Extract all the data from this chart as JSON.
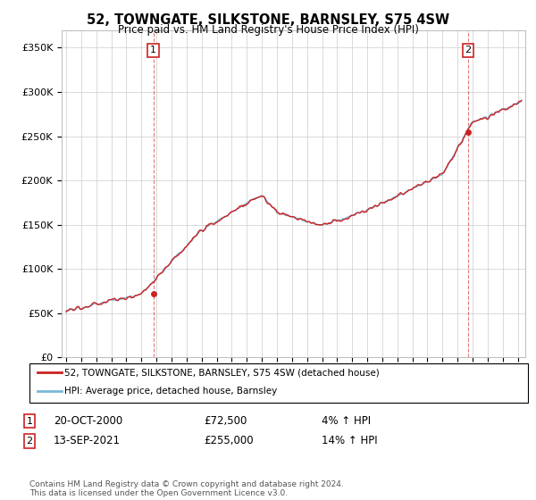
{
  "title": "52, TOWNGATE, SILKSTONE, BARNSLEY, S75 4SW",
  "subtitle": "Price paid vs. HM Land Registry's House Price Index (HPI)",
  "ylabel_ticks": [
    "£0",
    "£50K",
    "£100K",
    "£150K",
    "£200K",
    "£250K",
    "£300K",
    "£350K"
  ],
  "ytick_values": [
    0,
    50000,
    100000,
    150000,
    200000,
    250000,
    300000,
    350000
  ],
  "ylim": [
    0,
    370000
  ],
  "hpi_color": "#7ab8d9",
  "price_color": "#cc2222",
  "background_color": "#ffffff",
  "grid_color": "#cccccc",
  "legend_entries": [
    "52, TOWNGATE, SILKSTONE, BARNSLEY, S75 4SW (detached house)",
    "HPI: Average price, detached house, Barnsley"
  ],
  "point1_date": "20-OCT-2000",
  "point1_price": "£72,500",
  "point1_hpi": "4% ↑ HPI",
  "point1_year": 2000.79,
  "point1_value": 72500,
  "point2_date": "13-SEP-2021",
  "point2_price": "£255,000",
  "point2_hpi": "14% ↑ HPI",
  "point2_year": 2021.71,
  "point2_value": 255000,
  "footer": "Contains HM Land Registry data © Crown copyright and database right 2024.\nThis data is licensed under the Open Government Licence v3.0.",
  "xstart": 1995,
  "xend": 2025
}
